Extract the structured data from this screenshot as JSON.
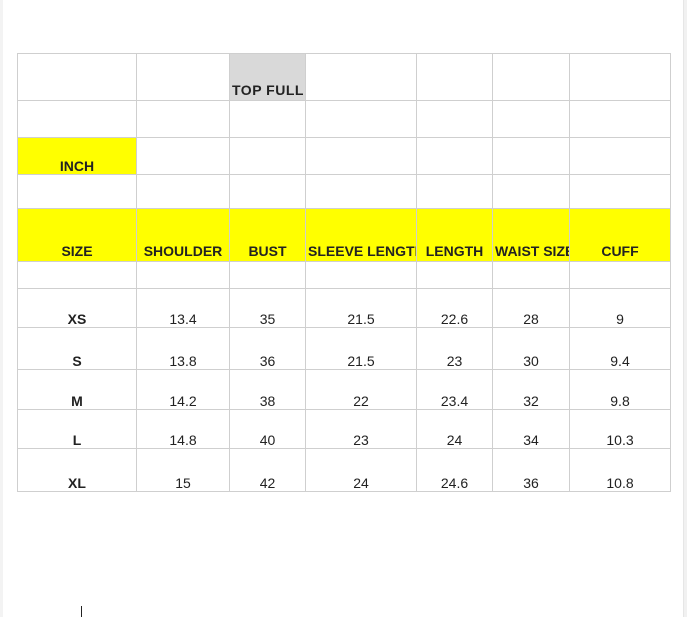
{
  "table": {
    "title": "TOP FULL SLEEVES",
    "unit_label": "INCH",
    "headers": [
      "SIZE",
      "SHOULDER",
      "BUST",
      "SLEEVE LENGTH",
      "LENGTH",
      "WAIST SIZE",
      "CUFF"
    ],
    "rows": [
      {
        "size": "XS",
        "shoulder": "13.4",
        "bust": "35",
        "sleeve_length": "21.5",
        "length": "22.6",
        "waist_size": "28",
        "cuff": "9"
      },
      {
        "size": "S",
        "shoulder": "13.8",
        "bust": "36",
        "sleeve_length": "21.5",
        "length": "23",
        "waist_size": "30",
        "cuff": "9.4"
      },
      {
        "size": "M",
        "shoulder": "14.2",
        "bust": "38",
        "sleeve_length": "22",
        "length": "23.4",
        "waist_size": "32",
        "cuff": "9.8"
      },
      {
        "size": "L",
        "shoulder": "14.8",
        "bust": "40",
        "sleeve_length": "23",
        "length": "24",
        "waist_size": "34",
        "cuff": "10.3"
      },
      {
        "size": "XL",
        "shoulder": "15",
        "bust": "42",
        "sleeve_length": "24",
        "length": "24.6",
        "waist_size": "36",
        "cuff": "10.8"
      }
    ]
  },
  "colors": {
    "header_highlight": "#ffff00",
    "title_highlight": "#d9d9d9",
    "grid_line": "#cfcfcf"
  }
}
